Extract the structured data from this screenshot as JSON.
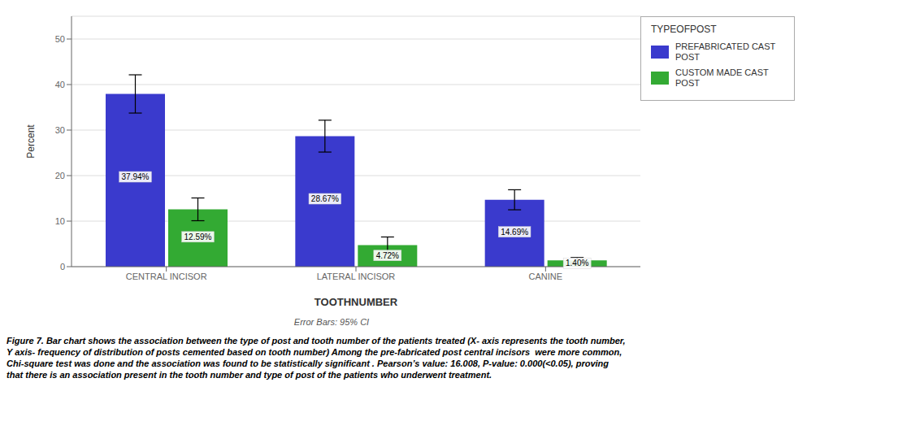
{
  "chart_data": {
    "type": "bar",
    "categories": [
      "CENTRAL INCISOR",
      "LATERAL INCISOR",
      "CANINE"
    ],
    "series": [
      {
        "name": "PREFABRICATED CAST\nPOST",
        "color": "#3a3acd",
        "values": [
          37.94,
          28.67,
          14.69
        ],
        "value_labels": [
          "37.94%",
          "28.67%",
          "14.69%"
        ],
        "errors": [
          4.2,
          3.5,
          2.2
        ]
      },
      {
        "name": "CUSTOM MADE CAST POST",
        "color": "#33aa33",
        "values": [
          12.59,
          4.72,
          1.4
        ],
        "value_labels": [
          "12.59%",
          "4.72%",
          "1.40%"
        ],
        "errors": [
          2.5,
          1.8,
          0.6
        ]
      }
    ],
    "xlabel": "TOOTHNUMBER",
    "ylabel": "Percent",
    "ylim": [
      0,
      55
    ],
    "yticks": [
      0,
      10,
      20,
      30,
      40,
      50
    ],
    "grid": true,
    "legend": "right",
    "legend_title": "TYPEOFPOST",
    "data_labels": true,
    "note": "Error Bars: 95% CI",
    "caption": "Figure 7. Bar chart shows the association between the type of post and tooth number of the patients treated (X- axis represents the tooth number,\nY axis- frequency of distribution of posts cemented based on tooth number) Among the pre-fabricated post central incisors  were more common,\nChi-square test was done and the association was found to be statistically significant . Pearson’s value: 16.008, P-value: 0.000(<0.05), proving\nthat there is an association present in the tooth number and type of post of the patients who underwent treatment."
  }
}
